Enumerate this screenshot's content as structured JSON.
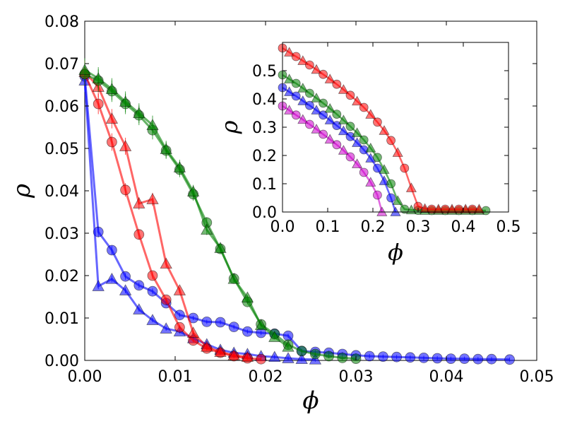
{
  "chart_data": [
    {
      "type": "line",
      "role": "main",
      "title": "",
      "xlabel": "ϕ",
      "ylabel": "ρ",
      "xlim": [
        0.0,
        0.05
      ],
      "ylim": [
        0.0,
        0.08
      ],
      "x_ticks": [
        "0.00",
        "0.01",
        "0.02",
        "0.03",
        "0.04",
        "0.05"
      ],
      "y_ticks": [
        "0.00",
        "0.01",
        "0.02",
        "0.03",
        "0.04",
        "0.05",
        "0.06",
        "0.07",
        "0.08"
      ],
      "x_tick_values": [
        0.0,
        0.01,
        0.02,
        0.03,
        0.04,
        0.05
      ],
      "y_tick_values": [
        0.0,
        0.01,
        0.02,
        0.03,
        0.04,
        0.05,
        0.06,
        0.07,
        0.08
      ],
      "series": [
        {
          "name": "blue-circle",
          "color": "#0000ff",
          "marker": "circle",
          "x": [
            0.0,
            0.0015,
            0.003,
            0.0045,
            0.006,
            0.0075,
            0.009,
            0.0105,
            0.012,
            0.0135,
            0.015,
            0.0165,
            0.018,
            0.0195,
            0.021,
            0.0225,
            0.024,
            0.0255,
            0.027,
            0.0285,
            0.03,
            0.0315,
            0.033,
            0.0345,
            0.036,
            0.0375,
            0.039,
            0.0405,
            0.042,
            0.0435,
            0.045,
            0.047
          ],
          "y": [
            0.067,
            0.0303,
            0.026,
            0.0198,
            0.0177,
            0.0163,
            0.0135,
            0.0107,
            0.01,
            0.0091,
            0.009,
            0.0079,
            0.0068,
            0.0065,
            0.0063,
            0.0058,
            0.0022,
            0.002,
            0.0018,
            0.0015,
            0.0012,
            0.001,
            0.0009,
            0.0008,
            0.0007,
            0.0006,
            0.0005,
            0.0004,
            0.0004,
            0.0003,
            0.0003,
            0.0002
          ]
        },
        {
          "name": "blue-triangle",
          "color": "#0000ff",
          "marker": "triangle",
          "x": [
            0.0,
            0.0015,
            0.003,
            0.0045,
            0.006,
            0.0075,
            0.009,
            0.0105,
            0.012,
            0.0135,
            0.015,
            0.0165,
            0.018,
            0.0195,
            0.021,
            0.0225,
            0.024,
            0.0255
          ],
          "y": [
            0.066,
            0.0175,
            0.0192,
            0.0165,
            0.012,
            0.0095,
            0.0075,
            0.0068,
            0.0052,
            0.0038,
            0.0025,
            0.0018,
            0.0015,
            0.001,
            0.0008,
            0.0005,
            0.0003,
            0.0002
          ]
        },
        {
          "name": "red-circle",
          "color": "#ff0000",
          "marker": "circle",
          "x": [
            0.0,
            0.0015,
            0.003,
            0.0045,
            0.006,
            0.0075,
            0.009,
            0.0105,
            0.012,
            0.0135,
            0.015,
            0.0165,
            0.018,
            0.0195
          ],
          "y": [
            0.0675,
            0.0605,
            0.0515,
            0.0402,
            0.0297,
            0.02,
            0.0143,
            0.0078,
            0.0047,
            0.0028,
            0.0018,
            0.001,
            0.0005,
            0.0003
          ]
        },
        {
          "name": "red-triangle",
          "color": "#ff0000",
          "marker": "triangle",
          "x": [
            0.0,
            0.0015,
            0.003,
            0.0045,
            0.006,
            0.0075,
            0.009,
            0.0105,
            0.012,
            0.0135,
            0.015,
            0.0165,
            0.018
          ],
          "y": [
            0.068,
            0.0645,
            0.057,
            0.0505,
            0.037,
            0.038,
            0.0228,
            0.0165,
            0.0065,
            0.0032,
            0.002,
            0.0012,
            0.0008
          ]
        },
        {
          "name": "green-circle",
          "color": "#008000",
          "marker": "circle",
          "x": [
            0.0,
            0.0015,
            0.003,
            0.0045,
            0.006,
            0.0075,
            0.009,
            0.0105,
            0.012,
            0.0135,
            0.015,
            0.0165,
            0.018,
            0.0195,
            0.021,
            0.0225,
            0.024,
            0.0255,
            0.027,
            0.0285,
            0.03
          ],
          "y": [
            0.0675,
            0.066,
            0.0635,
            0.0605,
            0.0578,
            0.0543,
            0.0495,
            0.045,
            0.0392,
            0.0325,
            0.0263,
            0.0193,
            0.0138,
            0.0085,
            0.0062,
            0.0037,
            0.0022,
            0.0015,
            0.001,
            0.0006,
            0.0004
          ]
        },
        {
          "name": "green-triangle",
          "color": "#008000",
          "marker": "triangle",
          "x": [
            0.0,
            0.0015,
            0.003,
            0.0045,
            0.006,
            0.0075,
            0.009,
            0.0105,
            0.012,
            0.0135,
            0.015,
            0.0165,
            0.018,
            0.0195,
            0.021,
            0.0225
          ],
          "y": [
            0.0685,
            0.0665,
            0.064,
            0.061,
            0.0583,
            0.0555,
            0.0498,
            0.0455,
            0.0398,
            0.0308,
            0.0265,
            0.0192,
            0.0148,
            0.0083,
            0.0055,
            0.0032
          ]
        }
      ]
    },
    {
      "type": "line",
      "role": "inset",
      "title": "",
      "xlabel": "ϕ",
      "ylabel": "ρ",
      "xlim": [
        0.0,
        0.5
      ],
      "ylim": [
        0.0,
        0.6
      ],
      "x_ticks": [
        "0.0",
        "0.1",
        "0.2",
        "0.3",
        "0.4",
        "0.5"
      ],
      "y_ticks": [
        "0.0",
        "0.1",
        "0.2",
        "0.3",
        "0.4",
        "0.5"
      ],
      "x_tick_values": [
        0.0,
        0.1,
        0.2,
        0.3,
        0.4,
        0.5
      ],
      "y_tick_values": [
        0.0,
        0.1,
        0.2,
        0.3,
        0.4,
        0.5
      ],
      "series": [
        {
          "name": "magenta",
          "color": "#cc00cc",
          "marker": "mixed",
          "x": [
            0.0,
            0.015,
            0.03,
            0.045,
            0.06,
            0.075,
            0.09,
            0.105,
            0.12,
            0.135,
            0.15,
            0.165,
            0.18,
            0.195,
            0.21,
            0.22
          ],
          "y": [
            0.375,
            0.36,
            0.343,
            0.327,
            0.31,
            0.293,
            0.275,
            0.257,
            0.238,
            0.218,
            0.195,
            0.17,
            0.14,
            0.105,
            0.06,
            0.0
          ]
        },
        {
          "name": "blue",
          "color": "#0000ff",
          "marker": "mixed",
          "x": [
            0.0,
            0.015,
            0.03,
            0.045,
            0.06,
            0.075,
            0.09,
            0.105,
            0.12,
            0.135,
            0.15,
            0.165,
            0.18,
            0.195,
            0.21,
            0.225,
            0.24,
            0.25
          ],
          "y": [
            0.44,
            0.425,
            0.41,
            0.393,
            0.377,
            0.36,
            0.343,
            0.325,
            0.306,
            0.287,
            0.267,
            0.245,
            0.22,
            0.19,
            0.155,
            0.11,
            0.05,
            0.0
          ]
        },
        {
          "name": "green",
          "color": "#008000",
          "marker": "mixed",
          "x": [
            0.0,
            0.015,
            0.03,
            0.045,
            0.06,
            0.075,
            0.09,
            0.105,
            0.12,
            0.135,
            0.15,
            0.165,
            0.18,
            0.195,
            0.21,
            0.225,
            0.24,
            0.255,
            0.27,
            0.285,
            0.3,
            0.315,
            0.33,
            0.345,
            0.36,
            0.375,
            0.39,
            0.405,
            0.42,
            0.435,
            0.45
          ],
          "y": [
            0.485,
            0.47,
            0.455,
            0.438,
            0.42,
            0.403,
            0.385,
            0.366,
            0.346,
            0.325,
            0.303,
            0.28,
            0.255,
            0.226,
            0.193,
            0.15,
            0.1,
            0.04,
            0.01,
            0.007,
            0.006,
            0.005,
            0.005,
            0.005,
            0.005,
            0.005,
            0.005,
            0.005,
            0.005,
            0.005,
            0.005
          ]
        },
        {
          "name": "red",
          "color": "#ff0000",
          "marker": "mixed",
          "x": [
            0.0,
            0.015,
            0.03,
            0.045,
            0.06,
            0.075,
            0.09,
            0.105,
            0.12,
            0.135,
            0.15,
            0.165,
            0.18,
            0.195,
            0.21,
            0.225,
            0.24,
            0.255,
            0.27,
            0.285,
            0.3,
            0.315,
            0.33,
            0.345,
            0.36,
            0.375,
            0.39,
            0.405,
            0.42,
            0.435
          ],
          "y": [
            0.58,
            0.565,
            0.55,
            0.535,
            0.52,
            0.504,
            0.487,
            0.47,
            0.452,
            0.433,
            0.413,
            0.392,
            0.37,
            0.345,
            0.318,
            0.288,
            0.253,
            0.21,
            0.155,
            0.085,
            0.02,
            0.012,
            0.01,
            0.01,
            0.01,
            0.01,
            0.01,
            0.01,
            0.01,
            0.01
          ]
        }
      ]
    }
  ]
}
